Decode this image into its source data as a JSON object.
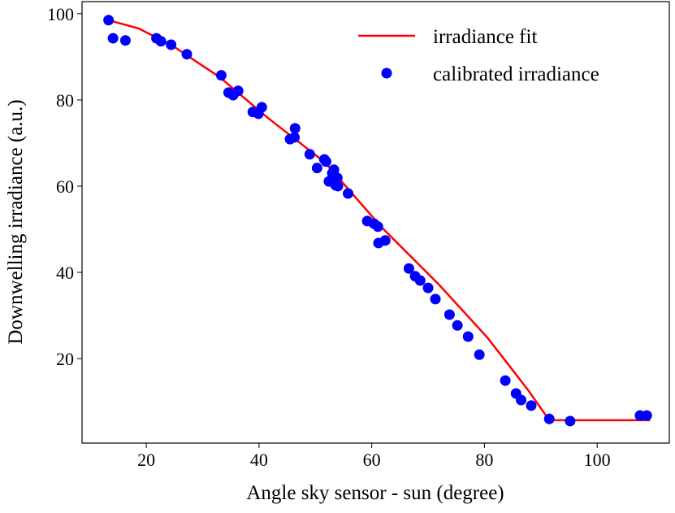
{
  "chart_data": {
    "type": "scatter",
    "title": "",
    "xlabel": "Angle sky sensor - sun (degree)",
    "ylabel": "Downwelling irradiance (a.u.)",
    "xlim": [
      8.6,
      112.8
    ],
    "ylim": [
      0.4,
      102.8
    ],
    "xticks": [
      20,
      40,
      60,
      80,
      100
    ],
    "yticks": [
      20,
      40,
      60,
      80,
      100
    ],
    "grid": false,
    "legend_position": "top-right",
    "series": [
      {
        "name": "irradiance fit",
        "type": "line",
        "color": "#ff0000",
        "x": [
          13.3,
          18.6,
          24.4,
          33.0,
          41.6,
          51.7,
          61.8,
          71.9,
          80.5,
          87.8,
          91.5,
          109.4
        ],
        "y": [
          98.5,
          96.6,
          92.8,
          85.3,
          75.8,
          65.5,
          50.4,
          37.2,
          24.9,
          12.6,
          5.7,
          5.7
        ]
      },
      {
        "name": "calibrated irradiance",
        "type": "scatter",
        "color": "#0000ff",
        "x": [
          13.3,
          14.1,
          16.3,
          21.8,
          22.6,
          24.4,
          27.2,
          33.3,
          34.6,
          35.4,
          36.3,
          38.9,
          39.9,
          40.5,
          45.5,
          46.3,
          46.4,
          49.0,
          50.3,
          51.6,
          51.9,
          52.4,
          53.0,
          53.3,
          53.6,
          53.9,
          54.0,
          55.8,
          59.2,
          60.4,
          61.1,
          61.2,
          62.4,
          66.6,
          67.7,
          68.6,
          70.0,
          71.3,
          73.8,
          75.2,
          77.1,
          79.1,
          83.7,
          85.6,
          86.5,
          88.3,
          91.5,
          95.2,
          107.6,
          108.8
        ],
        "y": [
          98.5,
          94.3,
          93.8,
          94.3,
          93.6,
          92.8,
          90.6,
          85.7,
          81.7,
          81.1,
          82.1,
          77.2,
          76.8,
          78.3,
          70.9,
          71.3,
          73.4,
          67.4,
          64.2,
          66.2,
          65.7,
          61.1,
          63.0,
          63.8,
          60.2,
          61.9,
          60.0,
          58.3,
          51.9,
          51.3,
          50.6,
          46.8,
          47.4,
          40.9,
          39.1,
          38.1,
          36.4,
          33.8,
          30.2,
          27.7,
          25.1,
          20.9,
          14.9,
          11.9,
          10.4,
          9.1,
          6.0,
          5.5,
          6.8,
          6.8
        ]
      }
    ]
  }
}
